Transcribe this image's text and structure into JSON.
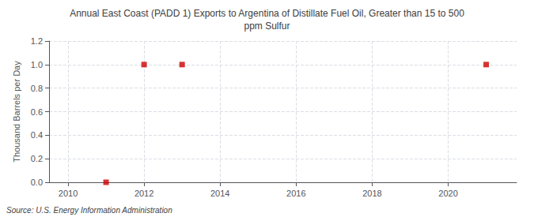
{
  "chart_data": {
    "type": "scatter",
    "title": "Annual East Coast (PADD 1) Exports to Argentina of Distillate Fuel Oil, Greater than 15 to 500\nppm Sulfur",
    "ylabel": "Thousand Barrels per Day",
    "source": "Source: U.S. Energy Information Administration",
    "x": [
      2011,
      2012,
      2013,
      2021
    ],
    "values": [
      0.0,
      1.0,
      1.0,
      1.0
    ],
    "color": "#cc0000",
    "marker": "square",
    "xlim": [
      2009.5,
      2021.8
    ],
    "xticks": [
      2010,
      2012,
      2014,
      2016,
      2018,
      2020
    ],
    "ylim": [
      0.0,
      1.2
    ],
    "yticks": [
      {
        "value": 0.0,
        "label": "0.0"
      },
      0.2,
      0.4,
      0.6,
      0.8,
      {
        "value": 1.0,
        "label": "1.0"
      },
      1.2
    ],
    "grid": true
  }
}
